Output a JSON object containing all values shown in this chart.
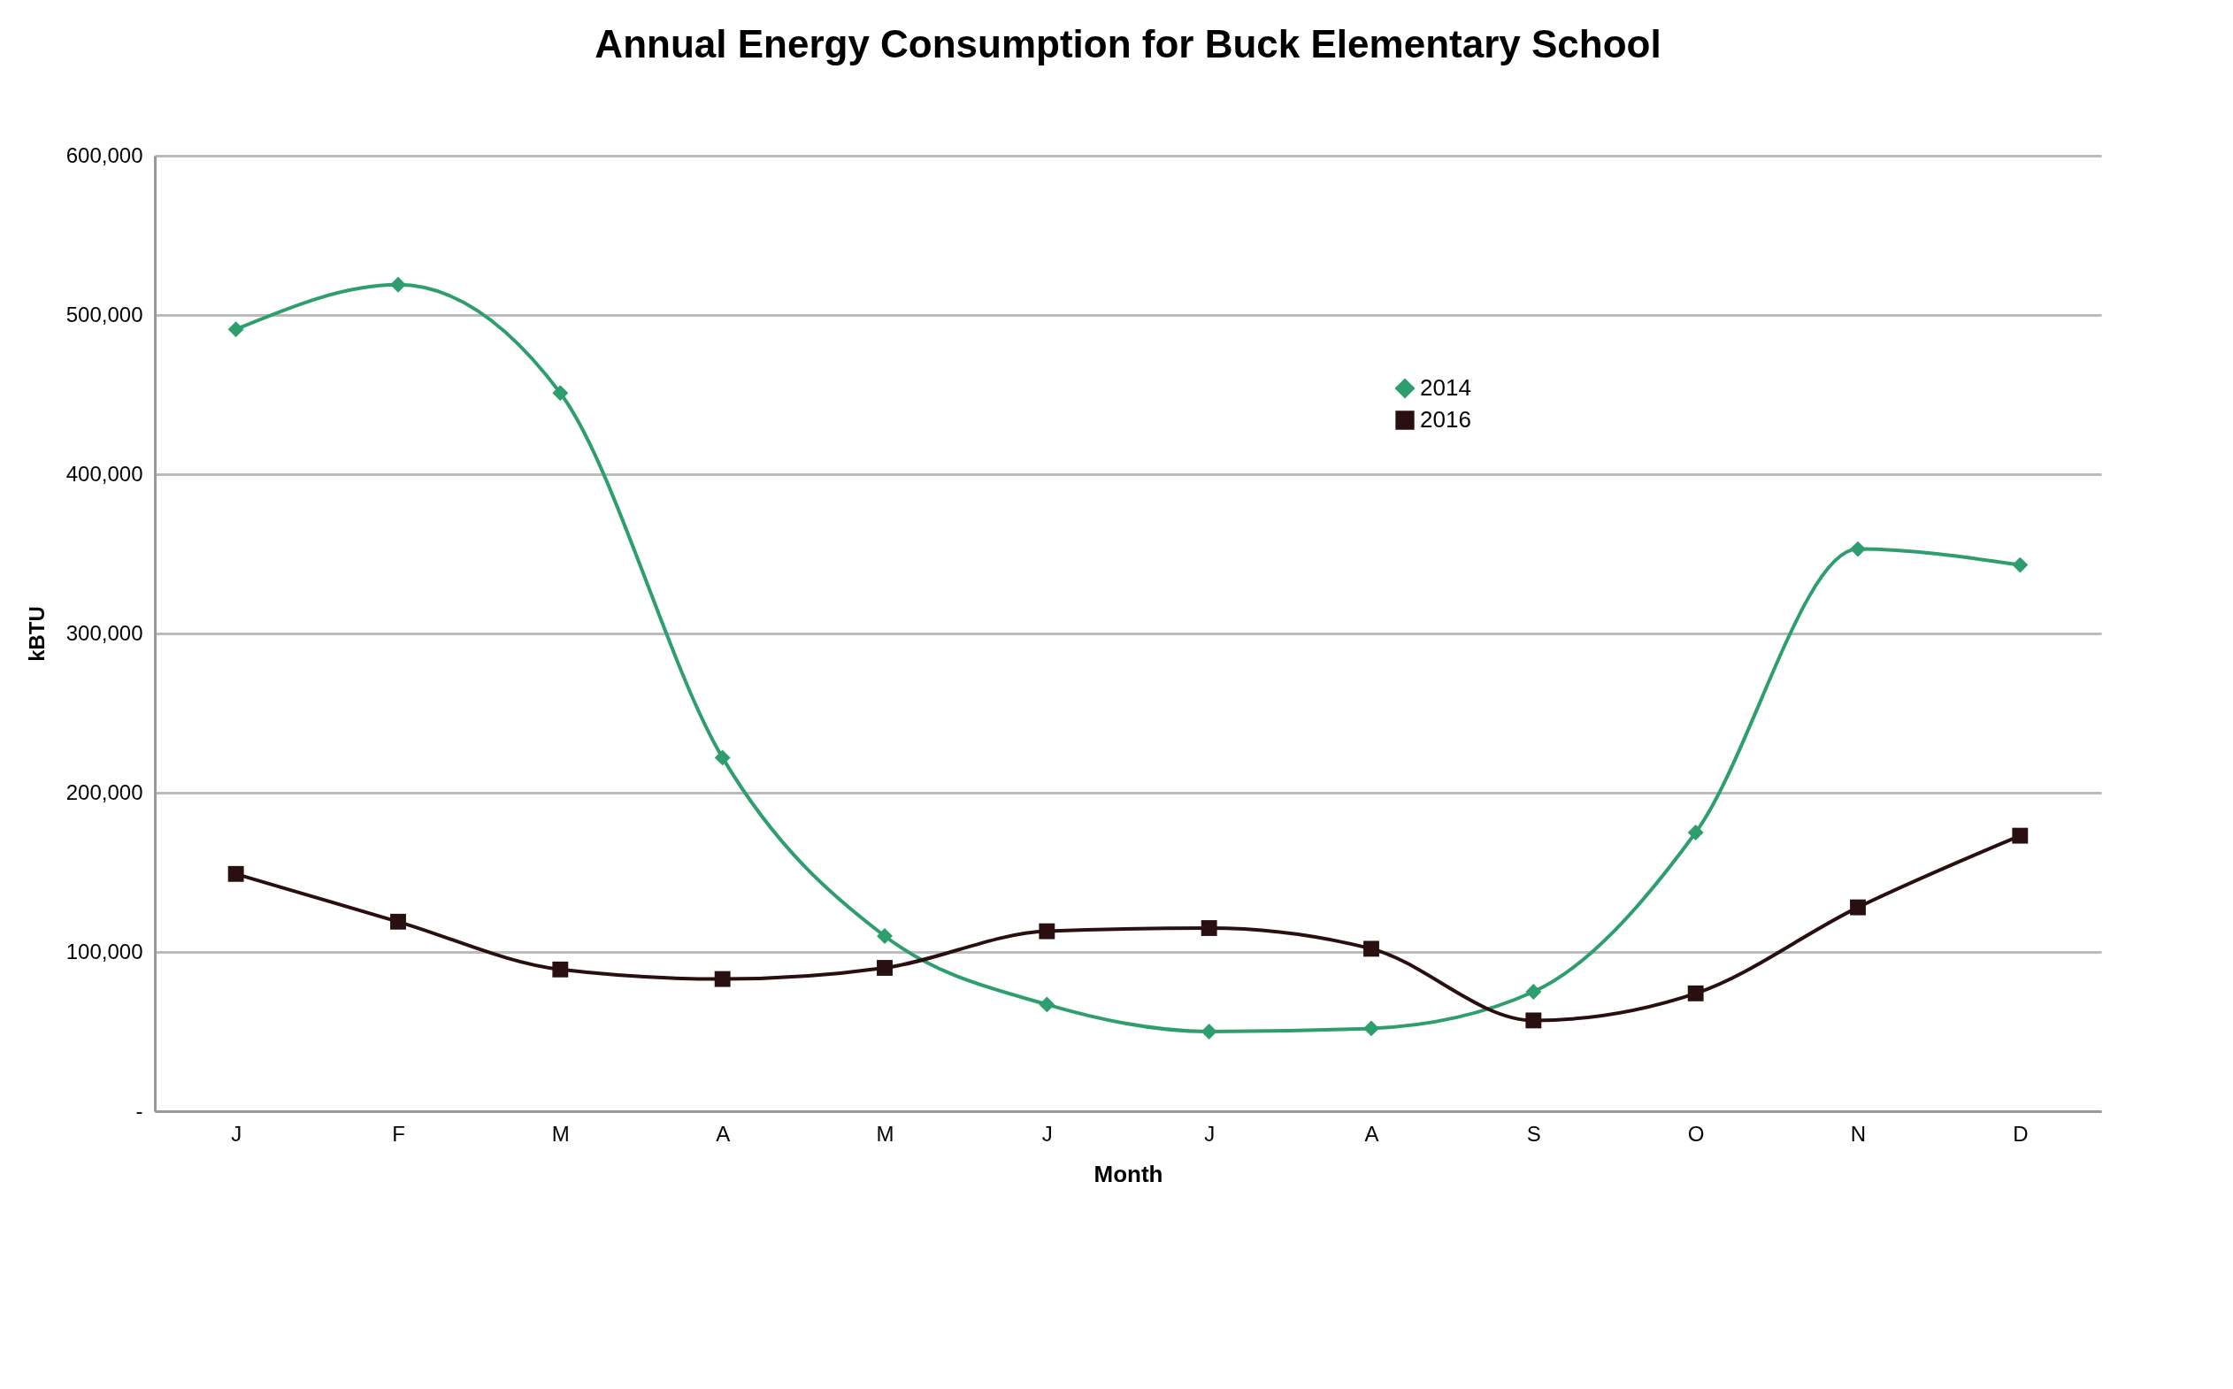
{
  "chart_data": {
    "type": "line",
    "title": "Annual Energy Consumption for Buck Elementary School",
    "xlabel": "Month",
    "ylabel": "kBTU",
    "categories": [
      "J",
      "F",
      "M",
      "A",
      "M",
      "J",
      "J",
      "A",
      "S",
      "O",
      "N",
      "D"
    ],
    "series": [
      {
        "name": "2014",
        "color": "#2e9e6e",
        "marker": "diamond",
        "values": [
          491000,
          519000,
          451000,
          222000,
          110000,
          67000,
          50000,
          52000,
          75000,
          175000,
          353000,
          343000
        ]
      },
      {
        "name": "2016",
        "color": "#2a0f10",
        "marker": "square",
        "values": [
          149000,
          119000,
          89000,
          83000,
          90000,
          113000,
          115000,
          102000,
          57000,
          74000,
          128000,
          173000
        ]
      }
    ],
    "ylim": [
      0,
      600000
    ],
    "yticks": [
      {
        "value": 0,
        "label": "-"
      },
      {
        "value": 100000,
        "label": "100,000"
      },
      {
        "value": 200000,
        "label": "200,000"
      },
      {
        "value": 300000,
        "label": "300,000"
      },
      {
        "value": 400000,
        "label": "400,000"
      },
      {
        "value": 500000,
        "label": "500,000"
      },
      {
        "value": 600000,
        "label": "600,000"
      }
    ],
    "grid": "y",
    "legend": "top right",
    "line_style": "solid"
  }
}
